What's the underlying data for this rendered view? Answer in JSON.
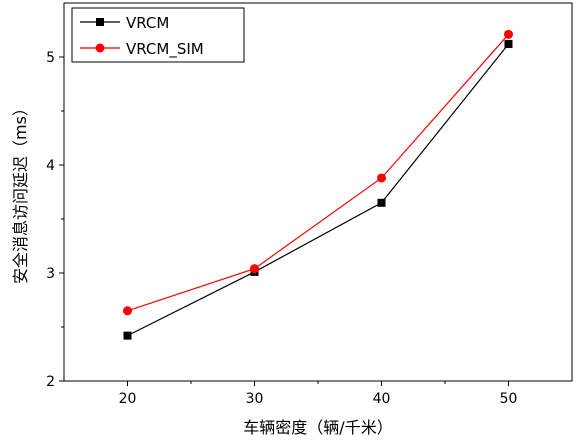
{
  "chart_data": {
    "type": "line",
    "title": "",
    "xlabel": "车辆密度（辆/千米）",
    "ylabel": "安全消息访问延迟（ms）",
    "x": [
      20,
      30,
      40,
      50
    ],
    "xticks": [
      "20",
      "30",
      "40",
      "50"
    ],
    "yticks": [
      "2",
      "3",
      "4",
      "5"
    ],
    "xlim": [
      15,
      55
    ],
    "ylim": [
      2,
      5.5
    ],
    "grid": false,
    "legend_position": "top-left",
    "series": [
      {
        "name": "VRCM",
        "values": [
          2.42,
          3.01,
          3.65,
          5.12
        ],
        "color": "#000000",
        "marker": "square"
      },
      {
        "name": "VRCM_SIM",
        "values": [
          2.65,
          3.04,
          3.88,
          5.21
        ],
        "color": "#ff0000",
        "marker": "circle"
      }
    ]
  }
}
